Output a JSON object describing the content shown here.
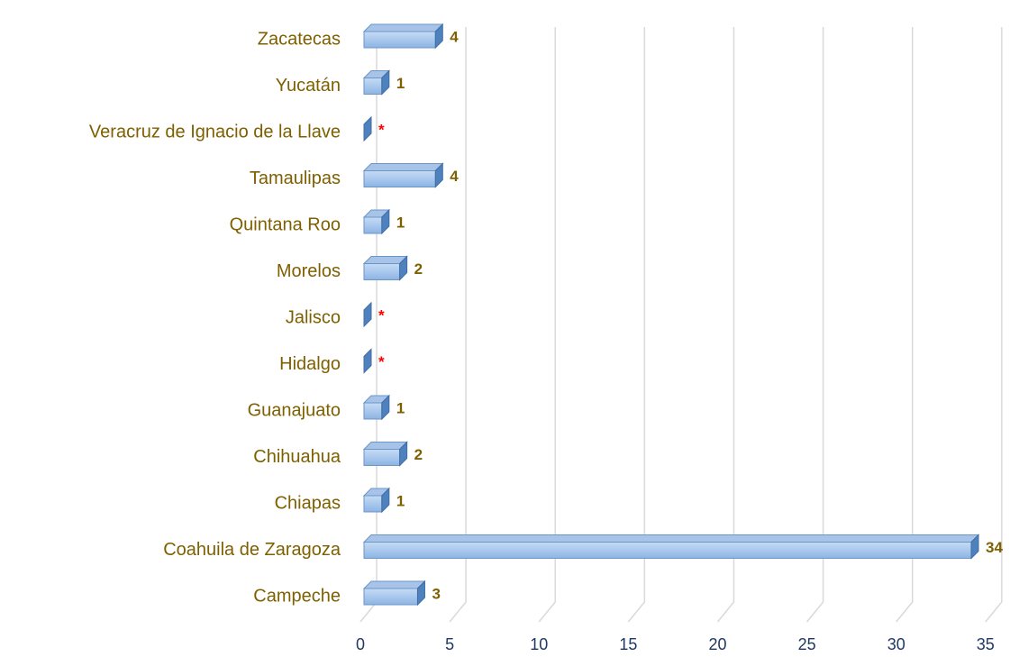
{
  "chart_data": {
    "type": "bar",
    "orientation": "horizontal",
    "categories": [
      "Zacatecas",
      "Yucatán",
      "Veracruz de Ignacio de la Llave",
      "Tamaulipas",
      "Quintana Roo",
      "Morelos",
      "Jalisco",
      "Hidalgo",
      "Guanajuato",
      "Chihuahua",
      "Chiapas",
      "Coahuila de Zaragoza",
      "Campeche"
    ],
    "values": [
      4,
      1,
      0,
      4,
      1,
      2,
      0,
      0,
      1,
      2,
      1,
      34,
      3
    ],
    "value_labels": [
      "4",
      "1",
      "*",
      "4",
      "1",
      "2",
      "*",
      "*",
      "1",
      "2",
      "1",
      "34",
      "3"
    ],
    "color": "#8db4e2",
    "label_color": "#7f6000",
    "na_label_color": "#ff0000",
    "tick_color": "#1f3864",
    "xlim": [
      0,
      35
    ],
    "xticks": [
      0,
      5,
      10,
      15,
      20,
      25,
      30,
      35
    ],
    "grid": true
  }
}
